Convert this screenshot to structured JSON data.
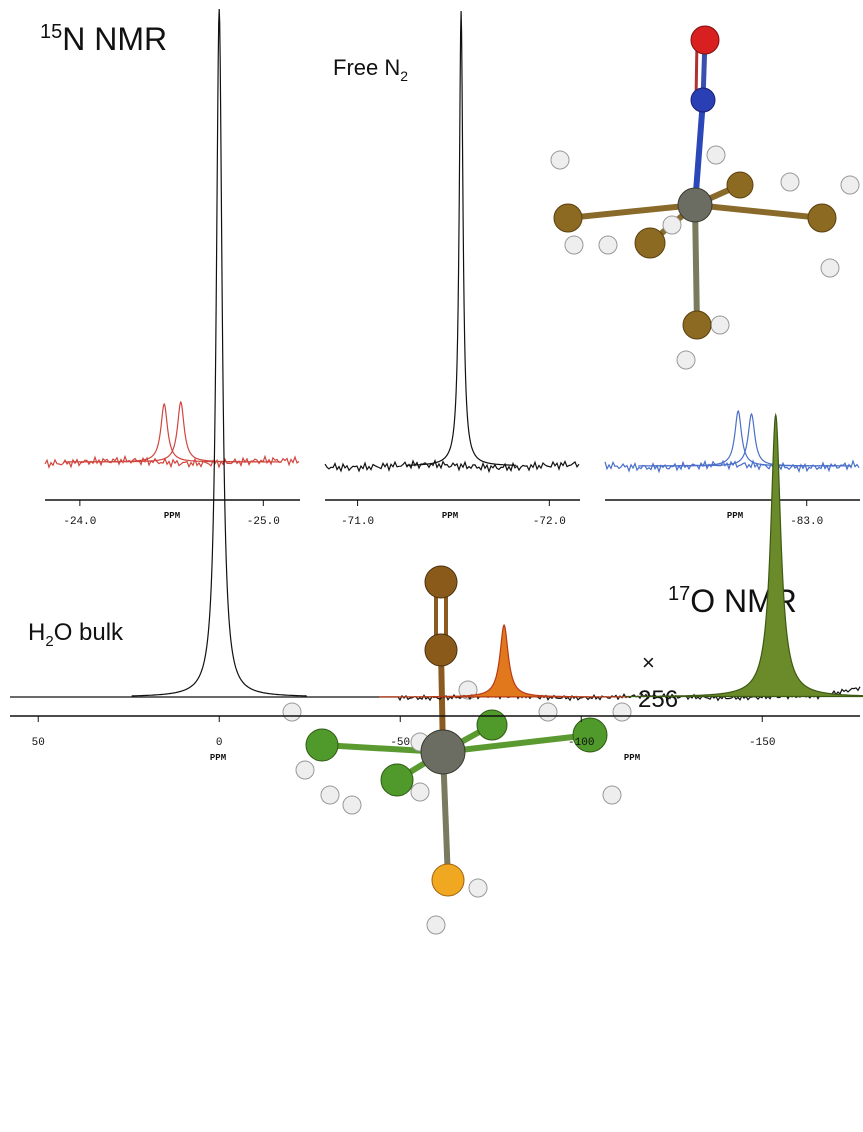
{
  "labels": {
    "n_nmr": {
      "sup": "15",
      "text": "N NMR"
    },
    "free_n2": {
      "text": "Free N",
      "sub": "2"
    },
    "h2o": {
      "text": "H",
      "sub": "2",
      "rest": "O bulk"
    },
    "o_nmr": {
      "sup": "17",
      "text": "O NMR"
    },
    "scale": {
      "symbol": "×",
      "factor": 256
    }
  },
  "chart_data": [
    {
      "type": "line",
      "color": "#d0463f",
      "xlim": [
        -23.81,
        -25.2
      ],
      "xticks": [
        {
          "value": -24.0,
          "label": "-24.0"
        },
        {
          "value": -25.0,
          "label": "-25.0"
        }
      ],
      "xlabel": "PPM",
      "peaks": [
        -24.46,
        -24.55
      ]
    },
    {
      "type": "line",
      "color": "#111111",
      "xlim": [
        -70.83,
        -72.16
      ],
      "xticks": [
        {
          "value": -71.0,
          "label": "-71.0"
        },
        {
          "value": -72.0,
          "label": "-72.0"
        }
      ],
      "xlabel": "PPM",
      "peaks": [
        -71.54
      ]
    },
    {
      "type": "line",
      "color": "#4a6fc9",
      "xlim": [
        -81.94,
        -83.28
      ],
      "xticks": [
        {
          "value": -83.0,
          "label": "-83.0"
        }
      ],
      "xlabel": "PPM",
      "peaks": [
        -82.64,
        -82.71
      ]
    },
    {
      "type": "line",
      "color": "#111111",
      "xlim": [
        57.8,
        -177
      ],
      "xticks": [
        50,
        0,
        -50,
        -100,
        -150
      ],
      "xlabel": "PPM",
      "peaks": [
        0,
        -78.7,
        -153.7
      ],
      "peak_colors": [
        "#111111",
        "#e2781c",
        "#6b8a2a"
      ]
    }
  ]
}
